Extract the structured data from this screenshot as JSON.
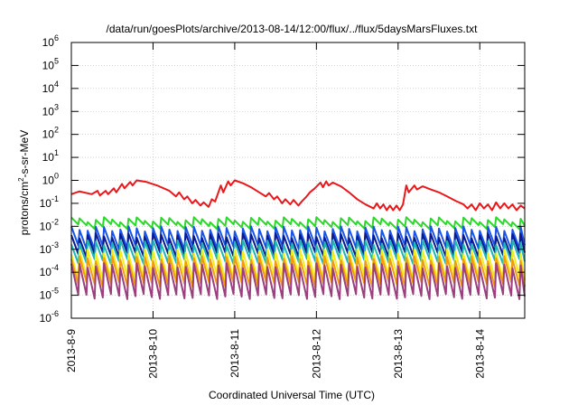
{
  "chart_data": {
    "type": "line",
    "title": "/data/run/goesPlots/archive/2013-08-14/12:00/flux/../flux/5daysMarsFluxes.txt",
    "xlabel": "Coordinated Universal Time (UTC)",
    "ylabel_parts": [
      "protons/cm",
      "2",
      "-s-sr-MeV"
    ],
    "y_scale": "log",
    "ylim": [
      1e-06,
      1000000.0
    ],
    "y_ticks": [
      {
        "base": "10",
        "exp": "-6"
      },
      {
        "base": "10",
        "exp": "-5"
      },
      {
        "base": "10",
        "exp": "-4"
      },
      {
        "base": "10",
        "exp": "-3"
      },
      {
        "base": "10",
        "exp": "-2"
      },
      {
        "base": "10",
        "exp": "-1"
      },
      {
        "base": "10",
        "exp": "0"
      },
      {
        "base": "10",
        "exp": "1"
      },
      {
        "base": "10",
        "exp": "2"
      },
      {
        "base": "10",
        "exp": "3"
      },
      {
        "base": "10",
        "exp": "4"
      },
      {
        "base": "10",
        "exp": "5"
      },
      {
        "base": "10",
        "exp": "6"
      }
    ],
    "x_tick_labels": [
      "2013-8-9",
      "2013-8-10",
      "2013-8-11",
      "2013-8-12",
      "2013-8-13",
      "2013-8-14"
    ],
    "xlim_days": [
      0,
      5.55
    ],
    "grid": true,
    "legend": "none",
    "series": [
      {
        "color": "#e8191c",
        "points": [
          [
            0,
            0.25
          ],
          [
            0.1,
            0.33
          ],
          [
            0.25,
            0.25
          ],
          [
            0.32,
            0.35
          ],
          [
            0.35,
            0.22
          ],
          [
            0.42,
            0.35
          ],
          [
            0.45,
            0.25
          ],
          [
            0.52,
            0.45
          ],
          [
            0.55,
            0.3
          ],
          [
            0.62,
            0.7
          ],
          [
            0.65,
            0.45
          ],
          [
            0.72,
            0.85
          ],
          [
            0.75,
            0.6
          ],
          [
            0.8,
            1.0
          ],
          [
            0.92,
            0.85
          ],
          [
            1.05,
            0.6
          ],
          [
            1.2,
            0.35
          ],
          [
            1.28,
            0.2
          ],
          [
            1.32,
            0.3
          ],
          [
            1.38,
            0.15
          ],
          [
            1.42,
            0.2
          ],
          [
            1.48,
            0.1
          ],
          [
            1.52,
            0.14
          ],
          [
            1.58,
            0.08
          ],
          [
            1.62,
            0.11
          ],
          [
            1.68,
            0.07
          ],
          [
            1.72,
            0.15
          ],
          [
            1.76,
            0.12
          ],
          [
            1.83,
            0.6
          ],
          [
            1.86,
            0.3
          ],
          [
            1.92,
            0.9
          ],
          [
            1.95,
            0.6
          ],
          [
            2.0,
            1.0
          ],
          [
            2.1,
            0.75
          ],
          [
            2.2,
            0.5
          ],
          [
            2.3,
            0.3
          ],
          [
            2.38,
            0.2
          ],
          [
            2.42,
            0.28
          ],
          [
            2.48,
            0.15
          ],
          [
            2.52,
            0.2
          ],
          [
            2.58,
            0.1
          ],
          [
            2.62,
            0.15
          ],
          [
            2.68,
            0.09
          ],
          [
            2.72,
            0.14
          ],
          [
            2.78,
            0.08
          ],
          [
            2.82,
            0.12
          ],
          [
            2.88,
            0.2
          ],
          [
            2.92,
            0.3
          ],
          [
            2.98,
            0.45
          ],
          [
            3.05,
            0.8
          ],
          [
            3.08,
            0.5
          ],
          [
            3.12,
            0.9
          ],
          [
            3.15,
            0.6
          ],
          [
            3.2,
            0.8
          ],
          [
            3.3,
            0.55
          ],
          [
            3.4,
            0.3
          ],
          [
            3.5,
            0.15
          ],
          [
            3.6,
            0.09
          ],
          [
            3.7,
            0.06
          ],
          [
            3.74,
            0.1
          ],
          [
            3.78,
            0.06
          ],
          [
            3.82,
            0.09
          ],
          [
            3.86,
            0.05
          ],
          [
            3.9,
            0.08
          ],
          [
            3.94,
            0.05
          ],
          [
            3.98,
            0.08
          ],
          [
            4.02,
            0.05
          ],
          [
            4.06,
            0.09
          ],
          [
            4.1,
            0.6
          ],
          [
            4.13,
            0.3
          ],
          [
            4.2,
            0.6
          ],
          [
            4.23,
            0.4
          ],
          [
            4.3,
            0.55
          ],
          [
            4.4,
            0.4
          ],
          [
            4.5,
            0.3
          ],
          [
            4.6,
            0.2
          ],
          [
            4.7,
            0.13
          ],
          [
            4.8,
            0.09
          ],
          [
            4.85,
            0.06
          ],
          [
            4.9,
            0.09
          ],
          [
            4.95,
            0.05
          ],
          [
            5.0,
            0.1
          ],
          [
            5.05,
            0.06
          ],
          [
            5.1,
            0.09
          ],
          [
            5.15,
            0.05
          ],
          [
            5.2,
            0.11
          ],
          [
            5.25,
            0.06
          ],
          [
            5.3,
            0.1
          ],
          [
            5.35,
            0.06
          ],
          [
            5.4,
            0.09
          ],
          [
            5.45,
            0.05
          ],
          [
            5.5,
            0.08
          ],
          [
            5.55,
            0.06
          ]
        ]
      },
      {
        "color": "#2bd82b",
        "pattern": "sawtooth",
        "period_days": 0.1,
        "peak": 0.02,
        "trough": 0.01
      },
      {
        "color": "#1a55e8",
        "pattern": "sawtooth",
        "period_days": 0.1,
        "peak": 0.008,
        "trough": 0.0012
      },
      {
        "color": "#0a1a8f",
        "pattern": "sawtooth",
        "period_days": 0.1,
        "peak": 0.004,
        "trough": 0.0006
      },
      {
        "color": "#1fb5b5",
        "pattern": "sawtooth",
        "period_days": 0.1,
        "peak": 0.002,
        "trough": 0.0003
      },
      {
        "color": "#f2ee1d",
        "pattern": "sawtooth",
        "period_days": 0.1,
        "peak": 0.0008,
        "trough": 6e-05
      },
      {
        "color": "#f29a12",
        "pattern": "sawtooth",
        "period_days": 0.1,
        "peak": 0.0004,
        "trough": 3e-05
      },
      {
        "color": "#9b3f7e",
        "pattern": "sawtooth",
        "period_days": 0.1,
        "peak": 0.0002,
        "trough": 9e-06
      }
    ]
  }
}
